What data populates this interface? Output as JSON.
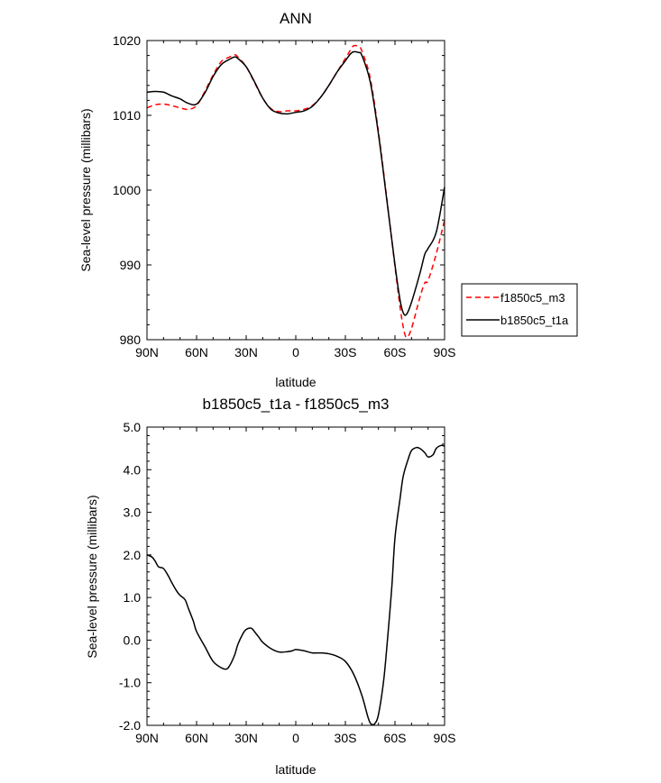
{
  "chart_data": [
    {
      "type": "line",
      "title": "ANN",
      "xlabel": "latitude",
      "ylabel": "Sea-level pressure (millibars)",
      "xlim": [
        90,
        -90
      ],
      "ylim": [
        980,
        1020
      ],
      "x_ticks": [
        90,
        60,
        30,
        0,
        -30,
        -60,
        -90
      ],
      "x_tick_labels": [
        "90N",
        "60N",
        "30N",
        "0",
        "30S",
        "60S",
        "90S"
      ],
      "y_ticks": [
        980,
        990,
        1000,
        1010,
        1020
      ],
      "y_tick_labels": [
        "980",
        "990",
        "1000",
        "1010",
        "1020"
      ],
      "legend_position": "right",
      "series": [
        {
          "name": "f1850c5_m3",
          "color": "#ff0000",
          "style": "dashed",
          "x": [
            90,
            85,
            80,
            75,
            70,
            65,
            60,
            55,
            50,
            45,
            40,
            37,
            35,
            30,
            25,
            20,
            15,
            10,
            5,
            0,
            -5,
            -10,
            -15,
            -20,
            -25,
            -30,
            -33,
            -35,
            -38,
            -40,
            -45,
            -50,
            -55,
            -60,
            -63,
            -65,
            -67,
            -70,
            -75,
            -78,
            -80,
            -85,
            -90
          ],
          "y": [
            1011.0,
            1011.4,
            1011.5,
            1011.3,
            1011.0,
            1010.8,
            1011.3,
            1013.2,
            1015.4,
            1017.2,
            1017.8,
            1018.1,
            1017.8,
            1016.5,
            1014.4,
            1012.3,
            1010.9,
            1010.5,
            1010.6,
            1010.6,
            1010.8,
            1011.3,
            1012.4,
            1014.0,
            1015.8,
            1017.6,
            1018.7,
            1019.3,
            1019.2,
            1018.6,
            1015.0,
            1007.8,
            999.0,
            989.8,
            984.5,
            981.7,
            980.3,
            981.5,
            985.6,
            987.6,
            987.9,
            991.5,
            996.0
          ]
        },
        {
          "name": "b1850c5_t1a",
          "color": "#000000",
          "style": "solid",
          "x": [
            90,
            85,
            80,
            75,
            70,
            65,
            60,
            55,
            50,
            45,
            40,
            37,
            35,
            30,
            25,
            20,
            15,
            10,
            5,
            0,
            -5,
            -10,
            -15,
            -20,
            -25,
            -30,
            -33,
            -35,
            -38,
            -40,
            -45,
            -50,
            -55,
            -60,
            -63,
            -65,
            -67,
            -70,
            -75,
            -78,
            -80,
            -85,
            -90
          ],
          "y": [
            1013.1,
            1013.2,
            1013.1,
            1012.6,
            1012.2,
            1011.6,
            1011.5,
            1013.0,
            1015.2,
            1016.8,
            1017.5,
            1017.8,
            1017.6,
            1016.5,
            1014.5,
            1012.3,
            1010.8,
            1010.3,
            1010.2,
            1010.4,
            1010.6,
            1011.2,
            1012.4,
            1014.0,
            1015.8,
            1017.3,
            1018.2,
            1018.5,
            1018.4,
            1018.0,
            1014.5,
            1007.5,
            998.8,
            990.0,
            985.4,
            983.6,
            983.4,
            985.0,
            988.8,
            991.4,
            992.2,
            994.4,
            1000.4
          ]
        }
      ]
    },
    {
      "type": "line",
      "title": "b1850c5_t1a - f1850c5_m3",
      "xlabel": "latitude",
      "ylabel": "Sea-level pressure (millibars)",
      "xlim": [
        90,
        -90
      ],
      "ylim": [
        -2.0,
        5.0
      ],
      "x_ticks": [
        90,
        60,
        30,
        0,
        -30,
        -60,
        -90
      ],
      "x_tick_labels": [
        "90N",
        "60N",
        "30N",
        "0",
        "30S",
        "60S",
        "90S"
      ],
      "y_ticks": [
        -2,
        -1,
        0,
        1,
        2,
        3,
        4,
        5
      ],
      "y_tick_labels": [
        "-2.0",
        "-1.0",
        "0.0",
        "1.0",
        "2.0",
        "3.0",
        "4.0",
        "5.0"
      ],
      "series": [
        {
          "name": "b1850c5_t1a - f1850c5_m3",
          "color": "#000000",
          "style": "solid",
          "x": [
            90,
            87,
            85,
            83,
            80,
            77,
            75,
            72,
            70,
            67,
            65,
            62,
            60,
            55,
            50,
            45,
            42,
            40,
            37,
            35,
            32,
            30,
            27,
            25,
            22,
            20,
            15,
            10,
            5,
            2,
            0,
            -5,
            -10,
            -15,
            -20,
            -25,
            -30,
            -35,
            -40,
            -44,
            -46,
            -48,
            -50,
            -53,
            -55,
            -58,
            -60,
            -63,
            -65,
            -68,
            -70,
            -73,
            -75,
            -78,
            -80,
            -83,
            -85,
            -88,
            -90
          ],
          "y": [
            2.0,
            1.95,
            1.85,
            1.72,
            1.68,
            1.5,
            1.35,
            1.15,
            1.05,
            0.95,
            0.75,
            0.45,
            0.2,
            -0.15,
            -0.5,
            -0.65,
            -0.68,
            -0.6,
            -0.35,
            -0.1,
            0.15,
            0.25,
            0.28,
            0.2,
            0.05,
            -0.05,
            -0.2,
            -0.28,
            -0.27,
            -0.25,
            -0.22,
            -0.25,
            -0.3,
            -0.3,
            -0.32,
            -0.38,
            -0.5,
            -0.8,
            -1.3,
            -1.85,
            -1.98,
            -1.95,
            -1.75,
            -1.0,
            -0.2,
            1.2,
            2.4,
            3.3,
            3.85,
            4.25,
            4.45,
            4.52,
            4.5,
            4.4,
            4.3,
            4.35,
            4.5,
            4.57,
            4.55
          ]
        }
      ]
    }
  ]
}
